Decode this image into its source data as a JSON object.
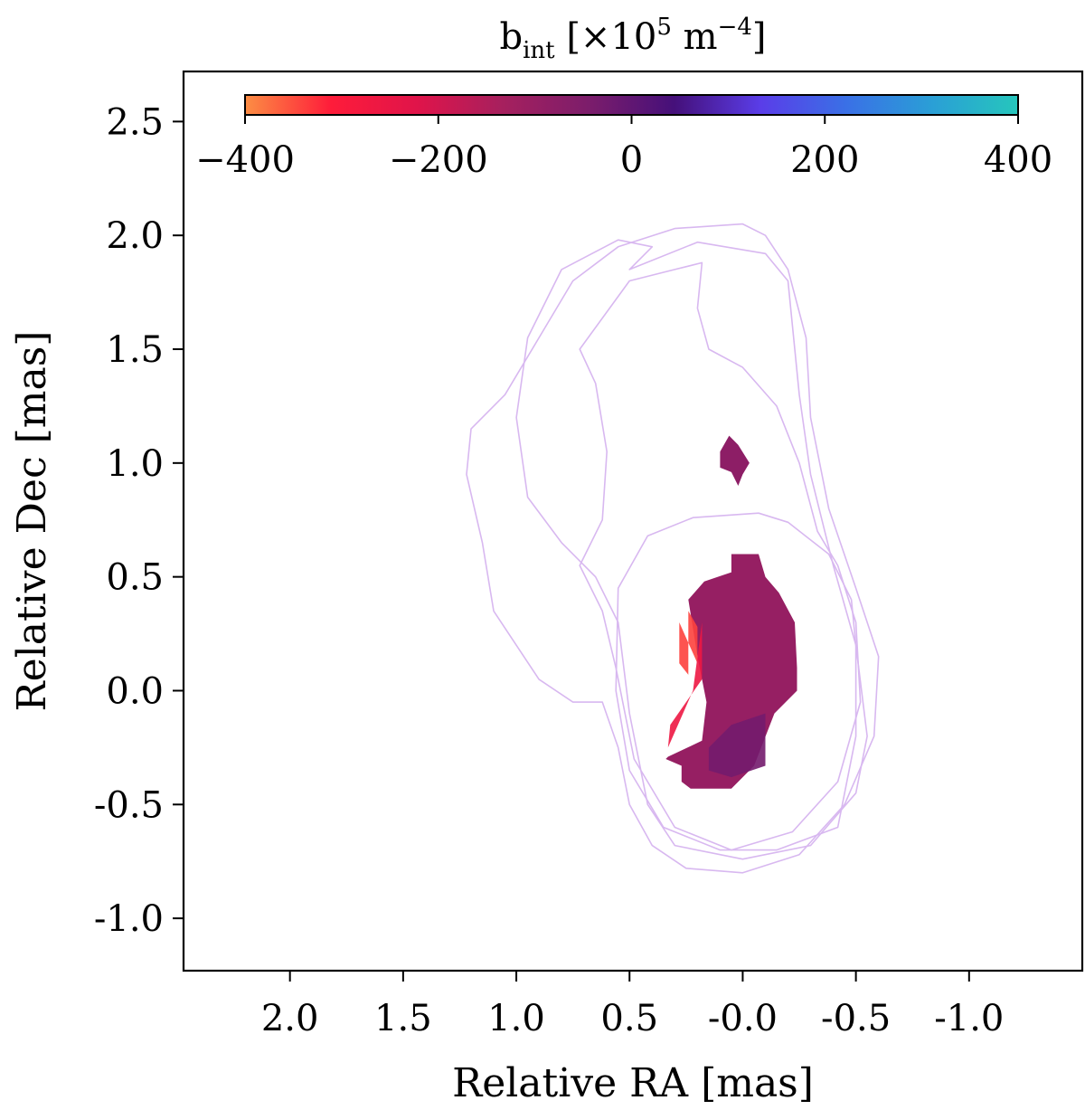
{
  "chart_data": {
    "type": "heatmap",
    "xlabel": "Relative RA [mas]",
    "ylabel": "Relative Dec [mas]",
    "xlim": [
      2.47,
      -1.5
    ],
    "ylim": [
      -1.23,
      2.72
    ],
    "x_ticks": [
      2.0,
      1.5,
      1.0,
      0.5,
      -0.0,
      -0.5,
      -1.0
    ],
    "x_tick_labels": [
      "2.0",
      "1.5",
      "1.0",
      "0.5",
      "-0.0",
      "-0.5",
      "-1.0"
    ],
    "y_ticks": [
      2.5,
      2.0,
      1.5,
      1.0,
      0.5,
      0.0,
      -0.5,
      -1.0
    ],
    "y_tick_labels": [
      "2.5",
      "2.0",
      "1.5",
      "1.0",
      "0.5",
      "0.0",
      "-0.5",
      "-1.0"
    ],
    "grid": false,
    "colorbar": {
      "label_base": "b",
      "label_sub": "int",
      "label_unit_prefix": "[×10",
      "label_exp": "5",
      "label_unit": " m",
      "label_unit_exp": "−4",
      "label_close": "]",
      "range": [
        -400,
        400
      ],
      "ticks": [
        -400,
        -200,
        0,
        200,
        400
      ],
      "tick_labels": [
        "−400",
        "−200",
        "0",
        "200",
        "400"
      ],
      "colormap_stops": [
        "#fc8e44",
        "#fe1c3a",
        "#e0144a",
        "#a6205e",
        "#7c1d6b",
        "#45107a",
        "#5a3de8",
        "#3a70e6",
        "#2a9fd6",
        "#26c6bc"
      ],
      "placement": "top inside"
    },
    "contour_color": "#d8b8f0",
    "contours": [
      [
        [
          0.0,
          2.05
        ],
        [
          0.3,
          2.03
        ],
        [
          0.55,
          1.95
        ],
        [
          0.75,
          1.8
        ],
        [
          0.9,
          1.55
        ],
        [
          1.05,
          1.3
        ],
        [
          1.2,
          1.15
        ],
        [
          1.22,
          0.95
        ],
        [
          1.15,
          0.65
        ],
        [
          1.1,
          0.35
        ],
        [
          0.9,
          0.05
        ],
        [
          0.75,
          -0.05
        ],
        [
          0.62,
          -0.05
        ],
        [
          0.55,
          -0.25
        ],
        [
          0.5,
          -0.5
        ],
        [
          0.4,
          -0.68
        ],
        [
          0.25,
          -0.78
        ],
        [
          0.0,
          -0.8
        ],
        [
          -0.25,
          -0.72
        ],
        [
          -0.45,
          -0.5
        ],
        [
          -0.58,
          -0.2
        ],
        [
          -0.6,
          0.15
        ],
        [
          -0.5,
          0.45
        ],
        [
          -0.38,
          0.8
        ],
        [
          -0.3,
          1.2
        ],
        [
          -0.28,
          1.55
        ],
        [
          -0.2,
          1.85
        ],
        [
          -0.1,
          2.0
        ],
        [
          0.0,
          2.05
        ]
      ],
      [
        [
          0.5,
          1.85
        ],
        [
          0.4,
          1.95
        ],
        [
          0.55,
          1.98
        ],
        [
          0.8,
          1.85
        ],
        [
          0.95,
          1.55
        ],
        [
          1.0,
          1.2
        ],
        [
          0.95,
          0.85
        ],
        [
          0.8,
          0.65
        ],
        [
          0.65,
          0.5
        ],
        [
          0.55,
          0.3
        ],
        [
          0.5,
          -0.1
        ],
        [
          0.42,
          -0.5
        ],
        [
          0.3,
          -0.68
        ],
        [
          0.0,
          -0.74
        ],
        [
          -0.3,
          -0.68
        ],
        [
          -0.5,
          -0.45
        ],
        [
          -0.55,
          -0.2
        ],
        [
          -0.5,
          0.2
        ],
        [
          -0.4,
          0.55
        ],
        [
          -0.3,
          0.95
        ],
        [
          -0.25,
          1.3
        ],
        [
          -0.22,
          1.6
        ],
        [
          -0.2,
          1.8
        ],
        [
          -0.1,
          1.92
        ],
        [
          0.2,
          1.97
        ],
        [
          0.5,
          1.85
        ]
      ],
      [
        [
          0.18,
          1.88
        ],
        [
          0.2,
          1.68
        ],
        [
          0.15,
          1.5
        ],
        [
          0.0,
          1.42
        ],
        [
          -0.15,
          1.25
        ],
        [
          -0.25,
          1.0
        ],
        [
          -0.33,
          0.7
        ],
        [
          -0.42,
          0.55
        ],
        [
          -0.5,
          0.3
        ],
        [
          -0.52,
          -0.05
        ],
        [
          -0.42,
          -0.4
        ],
        [
          -0.22,
          -0.62
        ],
        [
          0.05,
          -0.7
        ],
        [
          0.3,
          -0.6
        ],
        [
          0.48,
          -0.3
        ],
        [
          0.56,
          0.1
        ],
        [
          0.62,
          0.35
        ],
        [
          0.72,
          0.55
        ],
        [
          0.62,
          0.75
        ],
        [
          0.6,
          1.05
        ],
        [
          0.65,
          1.35
        ],
        [
          0.72,
          1.5
        ],
        [
          0.5,
          1.8
        ],
        [
          0.3,
          1.85
        ],
        [
          0.18,
          1.88
        ]
      ],
      [
        [
          -0.07,
          0.78
        ],
        [
          0.22,
          0.76
        ],
        [
          0.42,
          0.68
        ],
        [
          0.55,
          0.45
        ],
        [
          0.56,
          0.0
        ],
        [
          0.5,
          -0.35
        ],
        [
          0.35,
          -0.6
        ],
        [
          0.1,
          -0.7
        ],
        [
          -0.15,
          -0.7
        ],
        [
          -0.42,
          -0.6
        ],
        [
          -0.5,
          -0.2
        ],
        [
          -0.5,
          0.2
        ],
        [
          -0.48,
          0.4
        ],
        [
          -0.38,
          0.6
        ],
        [
          -0.2,
          0.74
        ],
        [
          -0.07,
          0.78
        ]
      ]
    ],
    "regions": [
      {
        "color_value": -100,
        "outline": [
          [
            -0.07,
            0.6
          ],
          [
            0.05,
            0.6
          ],
          [
            0.05,
            0.52
          ],
          [
            0.17,
            0.48
          ],
          [
            0.24,
            0.4
          ],
          [
            0.2,
            0.15
          ],
          [
            0.16,
            -0.05
          ],
          [
            0.18,
            -0.22
          ],
          [
            0.33,
            -0.29
          ],
          [
            0.34,
            -0.3
          ],
          [
            0.27,
            -0.33
          ],
          [
            0.27,
            -0.4
          ],
          [
            0.23,
            -0.43
          ],
          [
            0.05,
            -0.43
          ],
          [
            -0.05,
            -0.33
          ],
          [
            -0.14,
            -0.1
          ],
          [
            -0.24,
            0.0
          ],
          [
            -0.24,
            0.1
          ],
          [
            -0.23,
            0.3
          ],
          [
            -0.16,
            0.43
          ],
          [
            -0.1,
            0.5
          ],
          [
            -0.07,
            0.6
          ]
        ]
      },
      {
        "color_value": -80,
        "outline": [
          [
            0.06,
            1.12
          ],
          [
            0.02,
            1.08
          ],
          [
            -0.03,
            1.0
          ],
          [
            0.0,
            0.95
          ],
          [
            0.02,
            0.9
          ],
          [
            0.05,
            0.96
          ],
          [
            0.1,
            0.98
          ],
          [
            0.1,
            1.05
          ],
          [
            0.06,
            1.12
          ]
        ]
      }
    ],
    "gradient_bands": [
      {
        "color_value": -340,
        "outline": [
          [
            0.28,
            0.3
          ],
          [
            0.28,
            0.12
          ],
          [
            0.24,
            0.07
          ],
          [
            0.24,
            0.35
          ],
          [
            0.2,
            0.28
          ],
          [
            0.2,
            0.12
          ],
          [
            0.28,
            0.3
          ]
        ]
      },
      {
        "color_value": -260,
        "outline": [
          [
            0.18,
            0.3
          ],
          [
            0.18,
            0.05
          ],
          [
            0.32,
            -0.15
          ],
          [
            0.33,
            -0.25
          ],
          [
            0.22,
            0.0
          ],
          [
            0.18,
            0.3
          ]
        ]
      },
      {
        "color_value": -30,
        "outline": [
          [
            0.15,
            -0.25
          ],
          [
            0.05,
            -0.15
          ],
          [
            -0.1,
            -0.1
          ],
          [
            -0.1,
            -0.33
          ],
          [
            0.05,
            -0.38
          ],
          [
            0.15,
            -0.35
          ],
          [
            0.15,
            -0.25
          ]
        ]
      }
    ]
  }
}
